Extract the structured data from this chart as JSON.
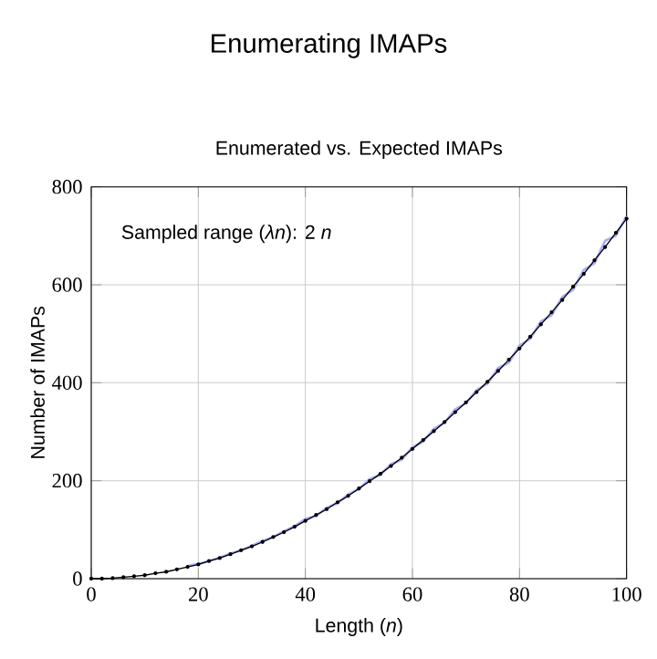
{
  "chart_data": {
    "type": "line",
    "title": "Enumerating IMAPs",
    "subtitle": "Enumerated vs. Expected IMAPs",
    "xlabel": "Length (*n*)",
    "ylabel": "Number of IMAPs",
    "annotations": [
      "Sampled range (*λn*): 2 *n*"
    ],
    "x": [
      0,
      2,
      4,
      6,
      8,
      10,
      12,
      14,
      16,
      18,
      20,
      22,
      24,
      26,
      28,
      30,
      32,
      34,
      36,
      38,
      40,
      42,
      44,
      46,
      48,
      50,
      52,
      54,
      56,
      58,
      60,
      62,
      64,
      66,
      68,
      70,
      72,
      74,
      76,
      78,
      80,
      82,
      84,
      86,
      88,
      90,
      92,
      94,
      96,
      98,
      100
    ],
    "series": [
      {
        "color": "#aaaaff",
        "marker": "none",
        "values": [
          null,
          null,
          null,
          null,
          null,
          null,
          null,
          null,
          null,
          26,
          30,
          36,
          43,
          51,
          58,
          67,
          77,
          85,
          97,
          107,
          122,
          128,
          145,
          154,
          172,
          183,
          203,
          212,
          234,
          243,
          268,
          280,
          306,
          318,
          346,
          358,
          385,
          398,
          430,
          441,
          476,
          490,
          525,
          538,
          575,
          590,
          630,
          644,
          690,
          700,
          740
        ]
      },
      {
        "color": "#000000",
        "marker": "circle",
        "values": [
          0,
          0,
          1,
          3,
          5,
          7,
          11,
          14,
          19,
          24,
          29,
          36,
          42,
          50,
          58,
          66,
          75,
          85,
          95,
          106,
          118,
          130,
          142,
          156,
          169,
          184,
          199,
          214,
          230,
          247,
          265,
          283,
          301,
          320,
          340,
          360,
          381,
          402,
          424,
          447,
          470,
          494,
          519,
          544,
          569,
          596,
          622,
          650,
          677,
          706,
          735
        ]
      }
    ],
    "xlim": [
      0,
      100
    ],
    "ylim": [
      0,
      800
    ],
    "xticks": [
      0,
      20,
      40,
      60,
      80,
      100
    ],
    "yticks": [
      0,
      200,
      400,
      600,
      800
    ],
    "grid": true
  }
}
